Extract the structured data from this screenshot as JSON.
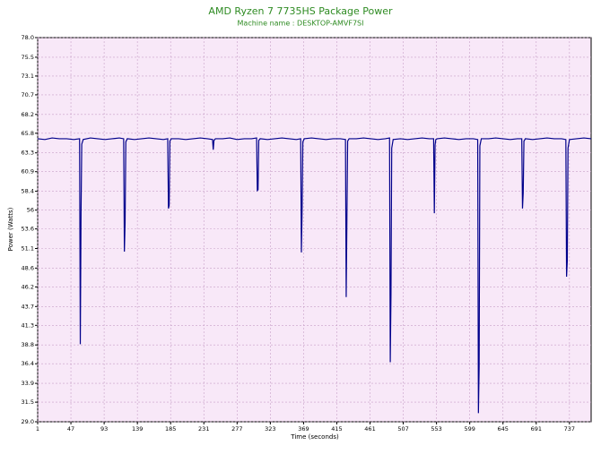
{
  "chart_data": {
    "type": "line",
    "title": "AMD Ryzen 7 7735HS Package Power",
    "subtitle": "Machine name : DESKTOP-AMVF7SI",
    "x_label": "Time (seconds)",
    "y_label": "Power (Watts)",
    "x": [
      1,
      11,
      21,
      31,
      41,
      51,
      59,
      60,
      61,
      62,
      64,
      74,
      84,
      94,
      104,
      114,
      120,
      121,
      122,
      123,
      125,
      135,
      145,
      155,
      165,
      175,
      181,
      182,
      183,
      184,
      186,
      196,
      206,
      216,
      226,
      236,
      243,
      244,
      245,
      247,
      257,
      267,
      277,
      287,
      297,
      304,
      305,
      306,
      307,
      309,
      319,
      329,
      339,
      349,
      359,
      365,
      366,
      367,
      368,
      370,
      380,
      390,
      400,
      410,
      420,
      427,
      428,
      429,
      430,
      432,
      442,
      452,
      462,
      472,
      482,
      488,
      489,
      490,
      491,
      493,
      503,
      513,
      523,
      533,
      543,
      549,
      550,
      551,
      552,
      554,
      564,
      574,
      584,
      594,
      604,
      610,
      611,
      612,
      613,
      615,
      625,
      635,
      645,
      655,
      665,
      671,
      672,
      673,
      674,
      676,
      686,
      696,
      706,
      716,
      726,
      732,
      733,
      734,
      735,
      737,
      747,
      757,
      767
    ],
    "series": [
      {
        "name": "Package Power",
        "color": "#00008b",
        "values": [
          65.1,
          65.0,
          65.2,
          65.1,
          65.1,
          65.0,
          65.1,
          38.9,
          55.6,
          64.4,
          65.0,
          65.2,
          65.1,
          65.0,
          65.1,
          65.2,
          65.1,
          50.7,
          54.4,
          64.7,
          65.1,
          65.0,
          65.1,
          65.2,
          65.1,
          65.0,
          65.1,
          56.2,
          56.6,
          64.8,
          65.1,
          65.1,
          65.0,
          65.1,
          65.2,
          65.1,
          65.0,
          63.7,
          64.9,
          65.1,
          65.1,
          65.2,
          65.0,
          65.1,
          65.1,
          65.2,
          58.5,
          58.6,
          64.9,
          65.1,
          65.0,
          65.1,
          65.2,
          65.1,
          65.0,
          65.1,
          50.6,
          56.3,
          64.7,
          65.1,
          65.2,
          65.1,
          65.0,
          65.1,
          65.1,
          65.0,
          44.9,
          55.0,
          64.8,
          65.1,
          65.1,
          65.2,
          65.1,
          65.0,
          65.1,
          65.2,
          36.6,
          45.3,
          63.9,
          65.0,
          65.1,
          65.0,
          65.1,
          65.2,
          65.1,
          65.1,
          55.6,
          64.3,
          65.0,
          65.1,
          65.2,
          65.1,
          65.0,
          65.1,
          65.1,
          65.0,
          30.1,
          36.0,
          64.2,
          65.1,
          65.1,
          65.2,
          65.1,
          65.0,
          65.1,
          65.1,
          56.2,
          58.2,
          64.8,
          65.1,
          65.0,
          65.1,
          65.2,
          65.1,
          65.1,
          65.0,
          47.5,
          49.5,
          63.9,
          65.0,
          65.1,
          65.2,
          65.1
        ]
      }
    ],
    "xlim": [
      1,
      767
    ],
    "xticks": [
      1,
      47,
      93,
      139,
      185,
      231,
      277,
      323,
      369,
      415,
      461,
      507,
      553,
      599,
      645,
      691,
      737
    ],
    "ylim": [
      29,
      78
    ],
    "yticks": [
      {
        "value": 78,
        "label": "78.0"
      },
      75.5,
      73.1,
      70.7,
      68.2,
      65.8,
      63.3,
      60.9,
      58.4,
      56.0,
      53.6,
      51.1,
      48.6,
      46.2,
      43.7,
      41.3,
      38.8,
      36.4,
      33.9,
      31.5,
      {
        "value": 29,
        "label": "29.0"
      }
    ],
    "grid": true
  }
}
